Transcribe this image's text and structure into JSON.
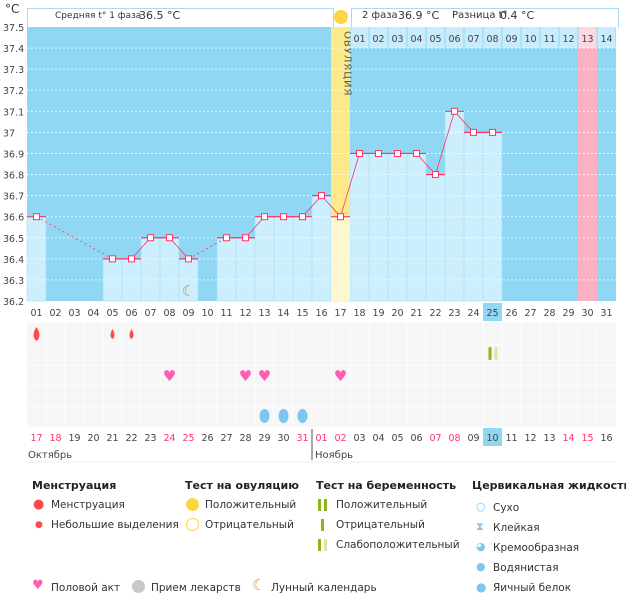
{
  "header": {
    "unit": "°C",
    "phase1_label": "Средняя t° 1 фаза",
    "phase1_value": "36.5 °C",
    "phase2_label": "2 фаза",
    "phase2_value": "36.9 °C",
    "diff_label": "Разница t°",
    "diff_value": "0.4 °C",
    "ovulation_label": "ОВУЛЯЦИЯ"
  },
  "chart_data": {
    "type": "line",
    "ylim": [
      36.2,
      37.5
    ],
    "y_ticks": [
      "37.5",
      "37.4",
      "37.3",
      "37.2",
      "37.1",
      "37",
      "36.9",
      "36.8",
      "36.7",
      "36.6",
      "36.5",
      "36.4",
      "36.3",
      "36.2"
    ],
    "x_labels": [
      "01",
      "02",
      "03",
      "04",
      "05",
      "06",
      "07",
      "08",
      "09",
      "10",
      "11",
      "12",
      "13",
      "14",
      "15",
      "16",
      "17",
      "18",
      "19",
      "20",
      "21",
      "22",
      "23",
      "24",
      "25",
      "26",
      "27",
      "28",
      "29",
      "30",
      "31"
    ],
    "temperatures": [
      36.6,
      null,
      null,
      null,
      36.4,
      36.4,
      36.5,
      36.5,
      36.4,
      null,
      36.5,
      36.5,
      36.6,
      36.6,
      36.6,
      36.7,
      36.6,
      36.9,
      36.9,
      36.9,
      36.9,
      36.8,
      37.1,
      37.0,
      37.0,
      null,
      null,
      null,
      null,
      null,
      null
    ],
    "ovulation_day": 17,
    "current_day": 25,
    "next_period_day": 30,
    "next_cycle_days": [
      "01",
      "02",
      "03",
      "04",
      "05",
      "06",
      "07",
      "08",
      "09",
      "10",
      "11",
      "12",
      "13",
      "14"
    ],
    "moon_day": 9,
    "grid": true
  },
  "markers": {
    "menstruation_heavy": [
      1
    ],
    "menstruation_light": [
      5,
      6
    ],
    "pregnancy_test_weak": [
      25
    ],
    "intercourse": [
      8,
      12,
      13,
      17
    ],
    "cervical_egg_white": [
      13,
      14,
      15
    ]
  },
  "dates": [
    "17",
    "18",
    "19",
    "20",
    "21",
    "22",
    "23",
    "24",
    "25",
    "26",
    "27",
    "28",
    "29",
    "30",
    "31",
    "01",
    "02",
    "03",
    "04",
    "05",
    "06",
    "07",
    "08",
    "09",
    "10",
    "11",
    "12",
    "13",
    "14",
    "15",
    "16"
  ],
  "weekend_dates_idx": [
    0,
    1,
    7,
    8,
    14,
    15,
    16,
    21,
    22,
    28,
    29
  ],
  "months": [
    "Октябрь",
    "Ноябрь"
  ],
  "legend": {
    "menstruation": {
      "title": "Менструация",
      "items": [
        "Менструация",
        "Небольшие выделения"
      ]
    },
    "ovulation_test": {
      "title": "Тест на овуляцию",
      "items": [
        "Положительный",
        "Отрицательный"
      ]
    },
    "pregnancy_test": {
      "title": "Тест на беременность",
      "items": [
        "Положительный",
        "Отрицательный",
        "Слабоположительный"
      ]
    },
    "cervical": {
      "title": "Цервикальная жидкость",
      "items": [
        "Сухо",
        "Клейкая",
        "Кремообразная",
        "Водянистая",
        "Яичный белок"
      ]
    },
    "other": [
      "Половой акт",
      "Прием лекарств",
      "Лунный календарь"
    ]
  },
  "colors": {
    "plot_bg": "#8fd7f2",
    "bar": "#cdeefc",
    "line": "#ff3366",
    "ovulation": "#fbe98a",
    "period": "#fbb0c4",
    "weekend": "#ff3366",
    "heart": "#ff5cb4",
    "drop": "#ff4a4a",
    "egg": "#7ec5f0"
  }
}
